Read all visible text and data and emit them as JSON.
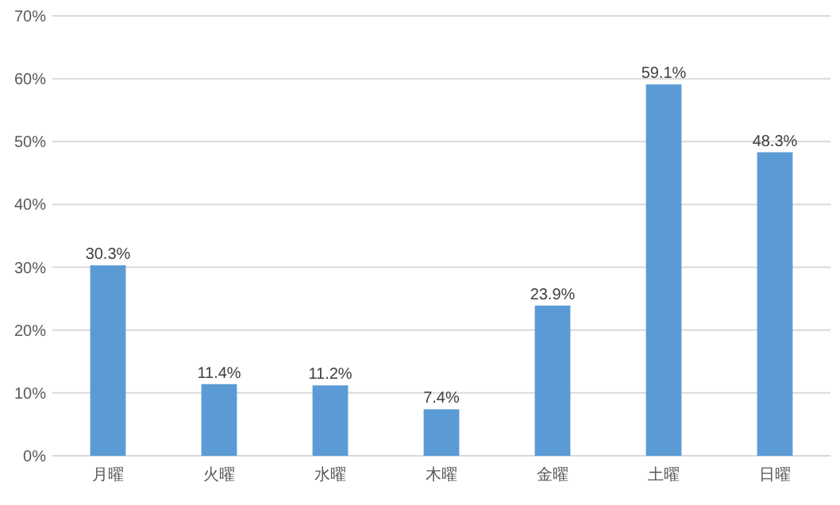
{
  "chart_data": {
    "type": "bar",
    "categories": [
      "月曜",
      "火曜",
      "水曜",
      "木曜",
      "金曜",
      "土曜",
      "日曜"
    ],
    "values": [
      30.3,
      11.4,
      11.2,
      7.4,
      23.9,
      59.1,
      48.3
    ],
    "value_labels": [
      "30.3%",
      "11.4%",
      "11.2%",
      "7.4%",
      "23.9%",
      "59.1%",
      "48.3%"
    ],
    "color": "#5b9bd5",
    "ylim": [
      0,
      70
    ],
    "yticks": [
      {
        "value": 0,
        "label": "0%"
      },
      {
        "value": 10,
        "label": "10%"
      },
      {
        "value": 20,
        "label": "20%"
      },
      {
        "value": 30,
        "label": "30%"
      },
      {
        "value": 40,
        "label": "40%"
      },
      {
        "value": 50,
        "label": "50%"
      },
      {
        "value": 60,
        "label": "60%"
      },
      {
        "value": 70,
        "label": "70%"
      }
    ],
    "grid": "y"
  }
}
